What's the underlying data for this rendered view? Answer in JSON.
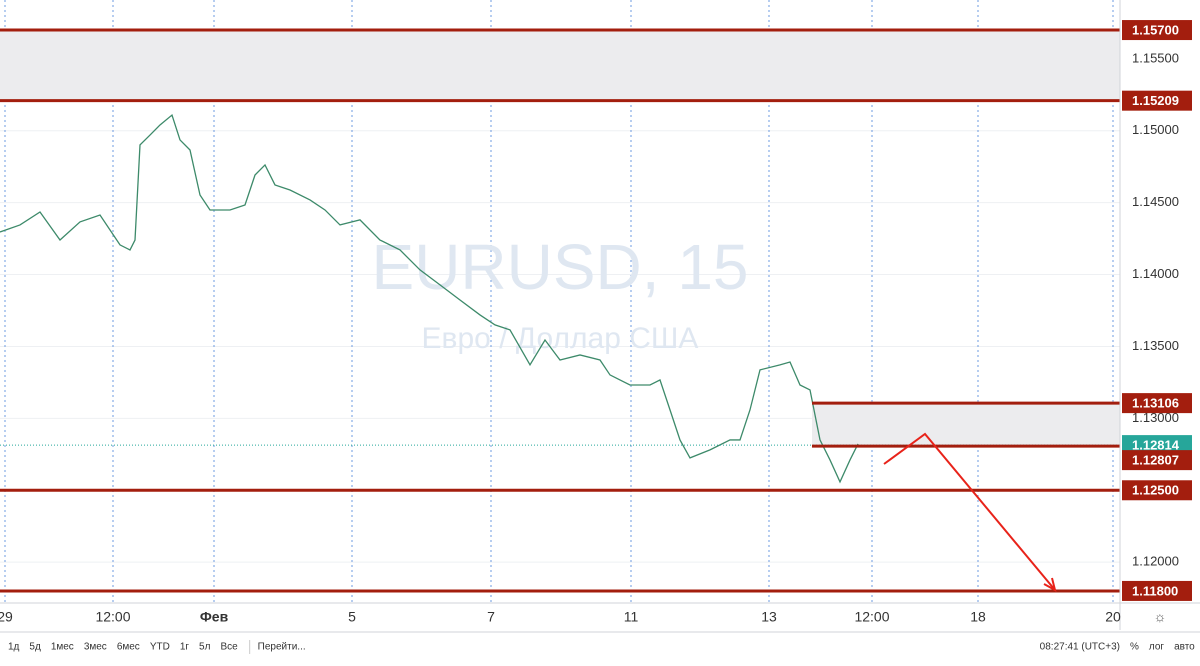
{
  "chart_data": {
    "type": "line",
    "title": "EURUSD, 15",
    "subtitle": "Евро / Доллар США",
    "x": [
      0,
      2,
      4,
      6,
      8,
      10,
      12,
      13,
      13.5,
      14,
      15,
      16,
      17.2,
      18,
      19,
      20,
      21,
      23,
      24.5,
      25.5,
      26.5,
      27.5,
      29,
      31,
      32.5,
      34,
      36,
      38,
      40,
      42,
      44,
      46,
      48,
      49.5,
      51,
      53,
      54.5,
      56,
      58,
      60,
      61,
      63,
      65,
      66,
      67,
      68,
      69,
      71,
      73,
      74,
      75,
      76,
      78,
      79,
      80,
      81,
      82,
      83,
      84,
      85,
      85.8
    ],
    "series": [
      {
        "name": "EURUSD",
        "color": "#3d8a6a",
        "values": [
          1.14296,
          1.14345,
          1.14435,
          1.1424,
          1.14366,
          1.14414,
          1.14206,
          1.14171,
          1.1424,
          1.14901,
          1.1497,
          1.1504,
          1.15109,
          1.14936,
          1.14866,
          1.14553,
          1.14449,
          1.14449,
          1.14484,
          1.14692,
          1.14762,
          1.14623,
          1.14588,
          1.14519,
          1.14449,
          1.14345,
          1.1438,
          1.1424,
          1.14171,
          1.14032,
          1.13928,
          1.13823,
          1.13719,
          1.1365,
          1.13615,
          1.13372,
          1.13545,
          1.13406,
          1.13441,
          1.13406,
          1.13302,
          1.13232,
          1.13232,
          1.13267,
          1.13059,
          1.1285,
          1.12725,
          1.12781,
          1.1285,
          1.1285,
          1.13059,
          1.13337,
          1.13372,
          1.13392,
          1.13232,
          1.13198,
          1.1285,
          1.12711,
          1.12558,
          1.12711,
          1.12822
        ]
      }
    ],
    "xlim": [
      0,
      112
    ],
    "xticks": [
      {
        "value": 0.5,
        "label": "29"
      },
      {
        "value": 11.3,
        "label": "12:00"
      },
      {
        "value": 21.4,
        "label": "Фев"
      },
      {
        "value": 35.2,
        "label": "5"
      },
      {
        "value": 49.1,
        "label": "7"
      },
      {
        "value": 63.1,
        "label": "11"
      },
      {
        "value": 76.9,
        "label": "13"
      },
      {
        "value": 87.2,
        "label": "12:00"
      },
      {
        "value": 97.8,
        "label": "18"
      },
      {
        "value": 111.3,
        "label": "20"
      }
    ],
    "ylim": [
      1.11737,
      1.15909
    ],
    "yticks": [
      {
        "value": 1.12,
        "label": "1.12000"
      },
      {
        "value": 1.125,
        "label": "1.12500"
      },
      {
        "value": 1.13,
        "label": "1.13000"
      },
      {
        "value": 1.135,
        "label": "1.13500"
      },
      {
        "value": 1.14,
        "label": "1.14000"
      },
      {
        "value": 1.145,
        "label": "1.14500"
      },
      {
        "value": 1.15,
        "label": "1.15000"
      },
      {
        "value": 1.155,
        "label": "1.15500"
      }
    ],
    "levels": [
      {
        "value": 1.157,
        "label": "1.15700",
        "color": "#a31e0e"
      },
      {
        "value": 1.15209,
        "label": "1.15209",
        "color": "#a31e0e"
      },
      {
        "value": 1.13106,
        "label": "1.13106",
        "color": "#a31e0e"
      },
      {
        "value": 1.12814,
        "label": "1.12814",
        "color": "#26a69a"
      },
      {
        "value": 1.12807,
        "label": "1.12807",
        "color": "#a31e0e"
      },
      {
        "value": 1.125,
        "label": "1.12500",
        "color": "#a31e0e"
      },
      {
        "value": 1.118,
        "label": "1.11800",
        "color": "#a31e0e"
      }
    ],
    "zones": [
      {
        "top": 1.157,
        "bottom": 1.15209,
        "x_start": 0
      },
      {
        "top": 1.13106,
        "bottom": 1.12807,
        "x_start": 81.2
      }
    ],
    "grid": true
  },
  "toolbar": {
    "ranges": [
      "1д",
      "5д",
      "1мес",
      "3мес",
      "6мес",
      "YTD",
      "1г",
      "5л",
      "Все"
    ],
    "goto": "Перейти...",
    "clock": "08:27:41 (UTC+3)",
    "options": [
      "%",
      "лог",
      "авто"
    ]
  }
}
